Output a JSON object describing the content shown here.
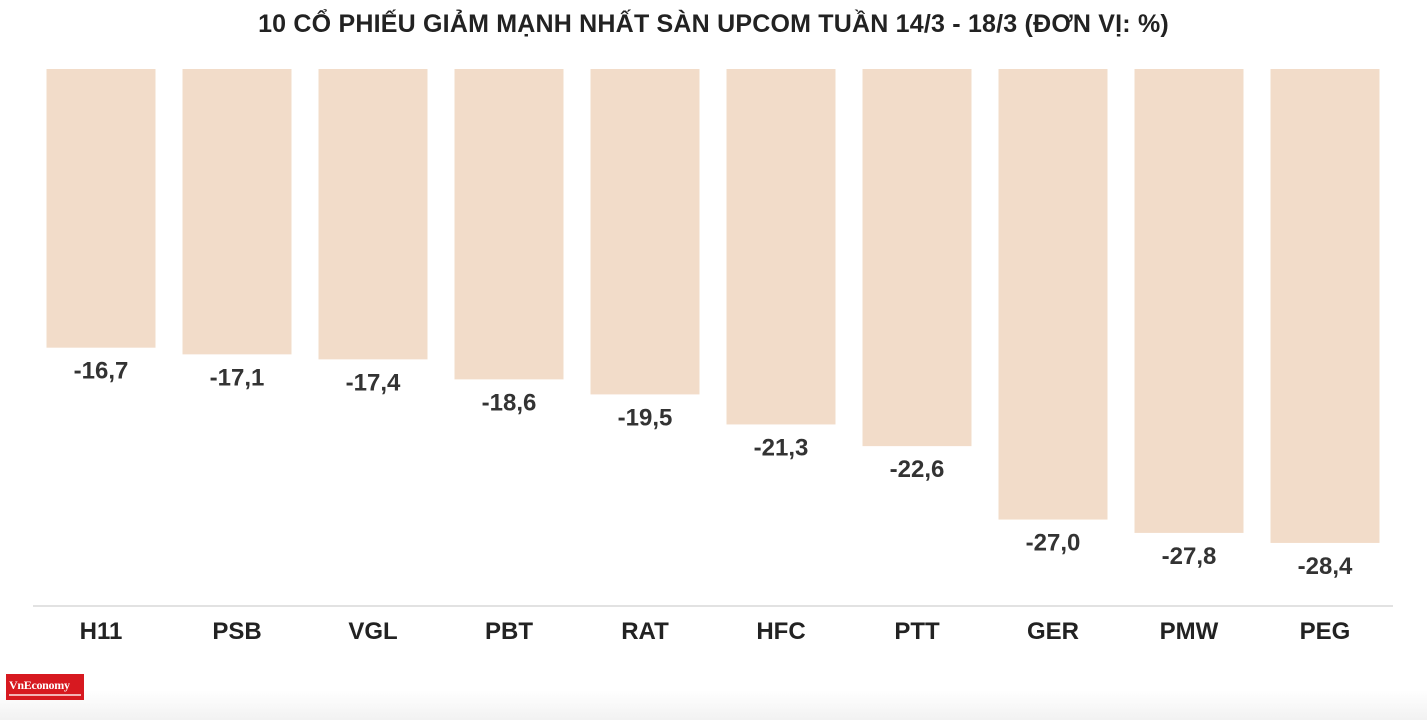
{
  "chart_data": {
    "type": "bar",
    "title": "10 CỔ PHIẾU GIẢM MẠNH NHẤT SÀN UPCOM TUẦN 14/3 - 18/3 (ĐƠN VỊ: %)",
    "categories": [
      "H11",
      "PSB",
      "VGL",
      "PBT",
      "RAT",
      "HFC",
      "PTT",
      "GER",
      "PMW",
      "PEG"
    ],
    "values": [
      -16.7,
      -17.1,
      -17.4,
      -18.6,
      -19.5,
      -21.3,
      -22.6,
      -27.0,
      -27.8,
      -28.4
    ],
    "data_labels": [
      "-16,7",
      "-17,1",
      "-17,4",
      "-18,6",
      "-19,5",
      "-21,3",
      "-22,6",
      "-27,0",
      "-27,8",
      "-28,4"
    ],
    "ylim": [
      -32,
      0
    ],
    "bar_color": "#f2dcc9",
    "grid": false
  },
  "logo": {
    "text": "VnEconomy",
    "color": "#d71920"
  }
}
